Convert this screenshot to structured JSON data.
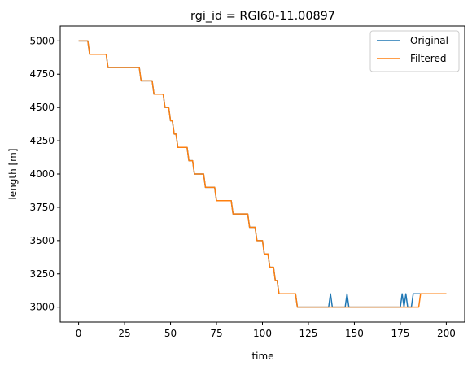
{
  "chart_data": {
    "type": "line",
    "title": "rgi_id = RGI60-11.00897",
    "xlabel": "time",
    "ylabel": "length [m]",
    "xlim": [
      -10,
      210
    ],
    "ylim": [
      2888,
      5112
    ],
    "xticks": [
      0,
      25,
      50,
      75,
      100,
      125,
      150,
      175,
      200
    ],
    "yticks": [
      3000,
      3250,
      3500,
      3750,
      4000,
      4250,
      4500,
      4750,
      5000
    ],
    "grid": false,
    "legend_position": "upper right",
    "series": [
      {
        "name": "Original",
        "color": "#1f77b4",
        "x": [
          0,
          5,
          6,
          15,
          16,
          33,
          34,
          40,
          41,
          46,
          47,
          49,
          50,
          51,
          52,
          53,
          54,
          55,
          56,
          59,
          60,
          62,
          63,
          68,
          69,
          74,
          75,
          83,
          84,
          92,
          93,
          96,
          97,
          100,
          101,
          103,
          104,
          106,
          107,
          108,
          109,
          110,
          111,
          118,
          119,
          136,
          137,
          138,
          145,
          146,
          147,
          175,
          176,
          177,
          178,
          179,
          181,
          182,
          200
        ],
        "y": [
          5000,
          5000,
          4900,
          4900,
          4800,
          4800,
          4700,
          4700,
          4600,
          4600,
          4500,
          4500,
          4400,
          4400,
          4300,
          4300,
          4200,
          4200,
          4200,
          4200,
          4100,
          4100,
          4000,
          4000,
          3900,
          3900,
          3800,
          3800,
          3700,
          3700,
          3600,
          3600,
          3500,
          3500,
          3400,
          3400,
          3300,
          3300,
          3200,
          3200,
          3100,
          3100,
          3100,
          3100,
          3000,
          3000,
          3100,
          3000,
          3000,
          3100,
          3000,
          3000,
          3100,
          3000,
          3100,
          3000,
          3000,
          3100,
          3100
        ]
      },
      {
        "name": "Filtered",
        "color": "#ff7f0e",
        "x": [
          0,
          5,
          6,
          15,
          16,
          33,
          34,
          40,
          41,
          46,
          47,
          49,
          50,
          51,
          52,
          53,
          54,
          55,
          56,
          59,
          60,
          62,
          63,
          68,
          69,
          74,
          75,
          83,
          84,
          92,
          93,
          96,
          97,
          100,
          101,
          103,
          104,
          106,
          107,
          108,
          109,
          110,
          111,
          118,
          119,
          185,
          186,
          200
        ],
        "y": [
          5000,
          5000,
          4900,
          4900,
          4800,
          4800,
          4700,
          4700,
          4600,
          4600,
          4500,
          4500,
          4400,
          4400,
          4300,
          4300,
          4200,
          4200,
          4200,
          4200,
          4100,
          4100,
          4000,
          4000,
          3900,
          3900,
          3800,
          3800,
          3700,
          3700,
          3600,
          3600,
          3500,
          3500,
          3400,
          3400,
          3300,
          3300,
          3200,
          3200,
          3100,
          3100,
          3100,
          3100,
          3000,
          3000,
          3100,
          3100
        ]
      }
    ]
  }
}
